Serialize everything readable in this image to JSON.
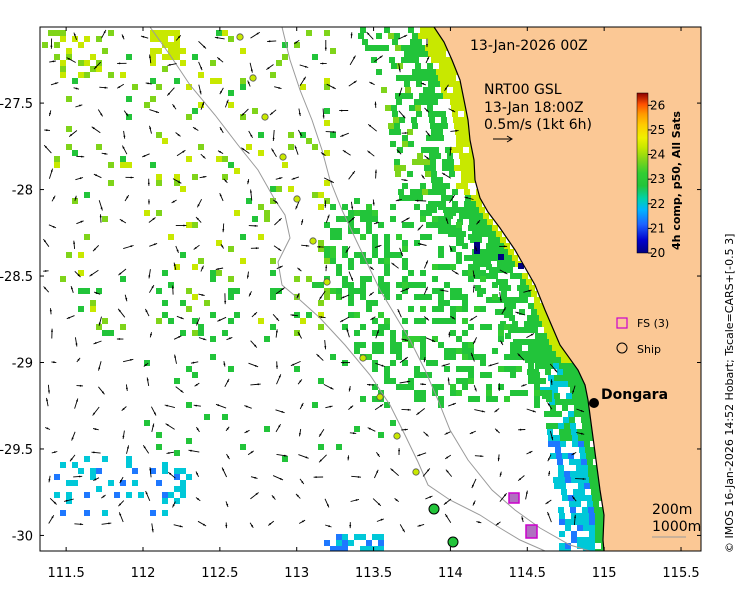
{
  "title_date": "13-Jan-2026 00Z",
  "product": {
    "name": "NRT00 GSL",
    "time": "13-Jan 18:00Z",
    "scale_label": "0.5m/s (1kt 6h)"
  },
  "colorbar": {
    "title": "4h comp, p50, All Sats",
    "ticks": [
      "26",
      "25",
      "24",
      "23",
      "22",
      "21",
      "20"
    ],
    "min": 20,
    "max": 26.5
  },
  "legend": {
    "fs_label": "FS (3)",
    "ship_label": "Ship"
  },
  "depth_contours": {
    "c1": "200m",
    "c2": "1000m"
  },
  "place": {
    "name": "Dongara"
  },
  "credit": "© IMOS 16-Jan-2026 14:52 Hobart; Tscale=CARS+[-0.5 3]",
  "x_ticks": [
    "111.5",
    "112",
    "112.5",
    "113",
    "113.5",
    "114",
    "114.5",
    "115",
    "115.5"
  ],
  "y_ticks": [
    "-27.5",
    "-28",
    "-28.5",
    "-29",
    "-29.5",
    "-30"
  ],
  "x_tick_values": [
    111.5,
    112,
    112.5,
    113,
    113.5,
    114,
    114.5,
    115,
    115.5
  ],
  "y_tick_values": [
    -27.5,
    -28,
    -28.5,
    -29,
    -29.5,
    -30
  ],
  "extent": {
    "lon_min": 111.33,
    "lon_max": 115.63,
    "lat_min": -30.09,
    "lat_max": -27.06
  },
  "colors": {
    "land": "#fbc895",
    "sea": "#ffffff",
    "fs_marker": "#cc00cc",
    "colormap": [
      "#000080",
      "#0000cd",
      "#1e64ff",
      "#00b4ff",
      "#00d2aa",
      "#22c43a",
      "#32cd32",
      "#7fd41a",
      "#c8e800",
      "#f0f000",
      "#ffcc00",
      "#ff9900",
      "#ff5000",
      "#d01e00",
      "#8b0000"
    ]
  }
}
